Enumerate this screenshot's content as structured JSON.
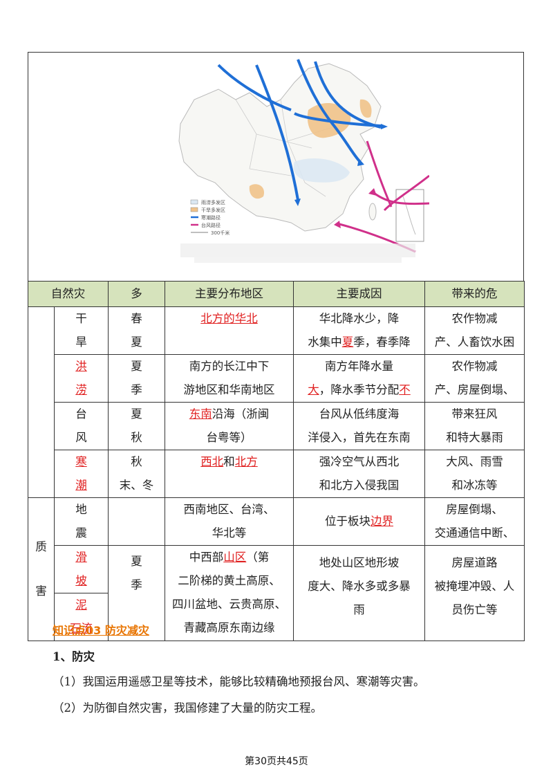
{
  "map": {
    "legend": [
      "雨涝多发区",
      "干旱多发区",
      "寒潮路径",
      "台风路径"
    ],
    "scale_label": "300千米",
    "colors": {
      "cold_wave": "#1f6fd6",
      "typhoon": "#d0308a",
      "drought": "#f0c28a",
      "border": "#b9b9b9"
    }
  },
  "table": {
    "headers": [
      "自然灾",
      "多",
      "主要分布地区",
      "主要成因",
      "带来的危"
    ],
    "groups": [
      {
        "label_lines": [
          "",
          ""
        ]
      },
      {
        "label_lines": [
          "质",
          "害"
        ]
      }
    ],
    "rows": [
      {
        "name": [
          "干",
          "旱"
        ],
        "name_red": false,
        "season": [
          "春",
          "夏"
        ],
        "area_html": "<span class=\"red\">北方的华北</span>",
        "area_align": "center",
        "cause": [
          "华北降水少，降",
          "水集中夏季，春季降"
        ],
        "cause_red_word": "夏",
        "effect": [
          "农作物减",
          "产、人畜饮水困"
        ]
      },
      {
        "name": [
          "洪",
          "涝"
        ],
        "name_red": true,
        "season": [
          "夏",
          "季"
        ],
        "area": [
          "南方的长江中下",
          "游地区和华南地区"
        ],
        "cause": [
          "南方年降水量",
          "大，降水季节分配不"
        ],
        "cause_red_words": [
          "大",
          "不"
        ],
        "effect": [
          "农作物减",
          "产、房屋倒塌、"
        ]
      },
      {
        "name": [
          "台",
          "风"
        ],
        "name_red": false,
        "season": [
          "夏",
          "秋"
        ],
        "area_red": "东南",
        "area_rest": [
          "沿海（浙闽",
          "台粤等）"
        ],
        "cause": [
          "台风从低纬度海",
          "洋侵入，首先在东南"
        ],
        "effect": [
          "带来狂风",
          "和特大暴雨"
        ]
      },
      {
        "name": [
          "寒",
          "潮"
        ],
        "name_red": true,
        "season": [
          "秋",
          "末、冬"
        ],
        "area_red1": "西北",
        "area_mid": "和",
        "area_red2": "北方",
        "cause": [
          "强冷空气从西北",
          "和北方入侵我国"
        ],
        "effect": [
          "大风、雨雪",
          "和冰冻等"
        ]
      },
      {
        "name": [
          "地",
          "震"
        ],
        "name_red": false,
        "season": [
          "",
          ""
        ],
        "area": [
          "西南地区、台湾、",
          "华北等"
        ],
        "cause_pre": "位于板块",
        "cause_red": "边界",
        "effect": [
          "房屋倒塌、",
          "交通通信中断、"
        ]
      },
      {
        "name": [
          "滑",
          "坡"
        ],
        "name_red": true,
        "name2": [
          "泥",
          "石流"
        ],
        "season": [
          "夏",
          "季"
        ],
        "area_pre": "中西部",
        "area_red": "山区",
        "area_rest": [
          "（第",
          "二阶梯的黄土高原、",
          "四川盆地、云贵高原、",
          "青藏高原东南边缘"
        ],
        "cause": [
          "地处山区地形坡",
          "度大、降水多或多暴",
          "雨"
        ],
        "effect": [
          "房屋道路",
          "被掩埋冲毁、人",
          "员伤亡等"
        ]
      }
    ]
  },
  "section": {
    "heading": "知识点03 防灾减灾",
    "subheading": "1、防灾",
    "items": [
      "（1）我国运用遥感卫星等技术，能够比较精确地预报台风、寒潮等灾害。",
      "（2）为防御自然灾害，我国修建了大量的防灾工程。"
    ]
  },
  "footer": {
    "page": "第30页共45页"
  }
}
